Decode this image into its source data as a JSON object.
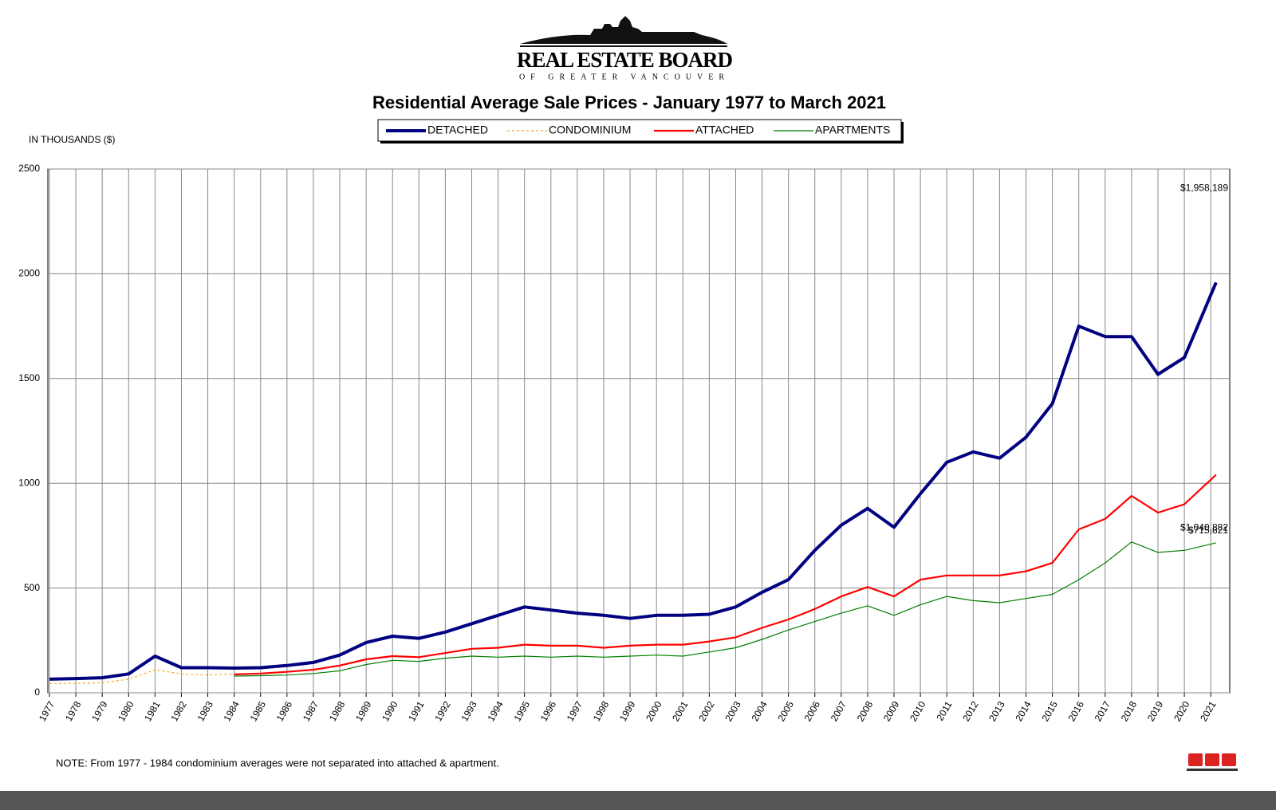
{
  "header": {
    "org": "REAL ESTATE BOARD",
    "org_sub": "OF GREATER VANCOUVER"
  },
  "note": "NOTE:  From 1977 - 1984 condominium averages were not separated into attached & apartment.",
  "chart_data": {
    "type": "line",
    "title": "Residential Average Sale Prices  -  January 1977 to March 2021",
    "y_label": "IN THOUSANDS ($)",
    "grid": true,
    "xlim": [
      1976.94,
      2021.72
    ],
    "ylim": [
      0,
      2500
    ],
    "xticks": [
      1977,
      1978,
      1979,
      1980,
      1981,
      1982,
      1983,
      1984,
      1985,
      1986,
      1987,
      1988,
      1989,
      1990,
      1991,
      1992,
      1993,
      1994,
      1995,
      1996,
      1997,
      1998,
      1999,
      2000,
      2001,
      2002,
      2003,
      2004,
      2005,
      2006,
      2007,
      2008,
      2009,
      2010,
      2011,
      2012,
      2013,
      2014,
      2015,
      2016,
      2017,
      2018,
      2019,
      2020,
      2021
    ],
    "yticks": [
      0,
      500,
      1000,
      1500,
      2000,
      2500
    ],
    "x": [
      1977,
      1978,
      1979,
      1980,
      1981,
      1982,
      1983,
      1984,
      1985,
      1986,
      1987,
      1988,
      1989,
      1990,
      1991,
      1992,
      1993,
      1994,
      1995,
      1996,
      1997,
      1998,
      1999,
      2000,
      2001,
      2002,
      2003,
      2004,
      2005,
      2006,
      2007,
      2008,
      2009,
      2010,
      2011,
      2012,
      2013,
      2014,
      2015,
      2016,
      2017,
      2018,
      2019,
      2020,
      2021.2
    ],
    "series": [
      {
        "name": "DETACHED",
        "color": "#000080",
        "line_width": 4,
        "line_style": "solid",
        "values": [
          65,
          68,
          72,
          90,
          175,
          120,
          120,
          118,
          120,
          130,
          145,
          180,
          240,
          270,
          260,
          290,
          330,
          370,
          410,
          395,
          380,
          370,
          355,
          370,
          370,
          375,
          410,
          480,
          540,
          680,
          800,
          880,
          790,
          950,
          1100,
          1150,
          1120,
          1220,
          1380,
          1750,
          1700,
          1700,
          1520,
          1600,
          1958.189
        ],
        "value_labels": [
          null,
          null,
          null,
          null,
          null,
          null,
          null,
          null,
          null,
          null,
          null,
          null,
          null,
          null,
          null,
          null,
          null,
          null,
          null,
          null,
          null,
          null,
          null,
          null,
          null,
          null,
          null,
          null,
          null,
          null,
          null,
          null,
          null,
          null,
          null,
          null,
          null,
          null,
          null,
          null,
          null,
          null,
          null,
          null,
          "$1,958,189"
        ]
      },
      {
        "name": "CONDOMINIUM",
        "color": "#f5a623",
        "line_width": 1.2,
        "line_style": "dashed",
        "values": [
          45,
          45,
          48,
          65,
          110,
          90,
          85,
          90,
          null,
          null,
          null,
          null,
          null,
          null,
          null,
          null,
          null,
          null,
          null,
          null,
          null,
          null,
          null,
          null,
          null,
          null,
          null,
          null,
          null,
          null,
          null,
          null,
          null,
          null,
          null,
          null,
          null,
          null,
          null,
          null,
          null,
          null,
          null,
          null,
          null
        ]
      },
      {
        "name": "ATTACHED",
        "color": "#ff0000",
        "line_width": 2.2,
        "line_style": "solid",
        "values": [
          null,
          null,
          null,
          null,
          null,
          null,
          null,
          88,
          92,
          100,
          110,
          130,
          160,
          175,
          170,
          190,
          210,
          215,
          230,
          225,
          225,
          215,
          225,
          230,
          230,
          245,
          265,
          310,
          350,
          400,
          460,
          505,
          460,
          540,
          560,
          560,
          560,
          580,
          620,
          780,
          830,
          940,
          860,
          900,
          1040.882
        ],
        "value_labels": [
          null,
          null,
          null,
          null,
          null,
          null,
          null,
          null,
          null,
          null,
          null,
          null,
          null,
          null,
          null,
          null,
          null,
          null,
          null,
          null,
          null,
          null,
          null,
          null,
          null,
          null,
          null,
          null,
          null,
          null,
          null,
          null,
          null,
          null,
          null,
          null,
          null,
          null,
          null,
          null,
          null,
          null,
          null,
          null,
          "$1,040,882"
        ]
      },
      {
        "name": "APARTMENTS",
        "color": "#008000",
        "line_width": 1.2,
        "line_style": "solid",
        "values": [
          null,
          null,
          null,
          null,
          null,
          null,
          null,
          80,
          82,
          85,
          92,
          105,
          135,
          155,
          150,
          165,
          175,
          170,
          175,
          170,
          175,
          170,
          175,
          180,
          175,
          195,
          215,
          255,
          300,
          340,
          380,
          415,
          370,
          420,
          460,
          440,
          430,
          450,
          470,
          540,
          620,
          720,
          670,
          680,
          715.821
        ],
        "value_labels": [
          null,
          null,
          null,
          null,
          null,
          null,
          null,
          null,
          null,
          null,
          null,
          null,
          null,
          null,
          null,
          null,
          null,
          null,
          null,
          null,
          null,
          null,
          null,
          null,
          null,
          null,
          null,
          null,
          null,
          null,
          null,
          null,
          null,
          null,
          null,
          null,
          null,
          null,
          null,
          null,
          null,
          null,
          null,
          null,
          "$715,821"
        ]
      }
    ]
  }
}
